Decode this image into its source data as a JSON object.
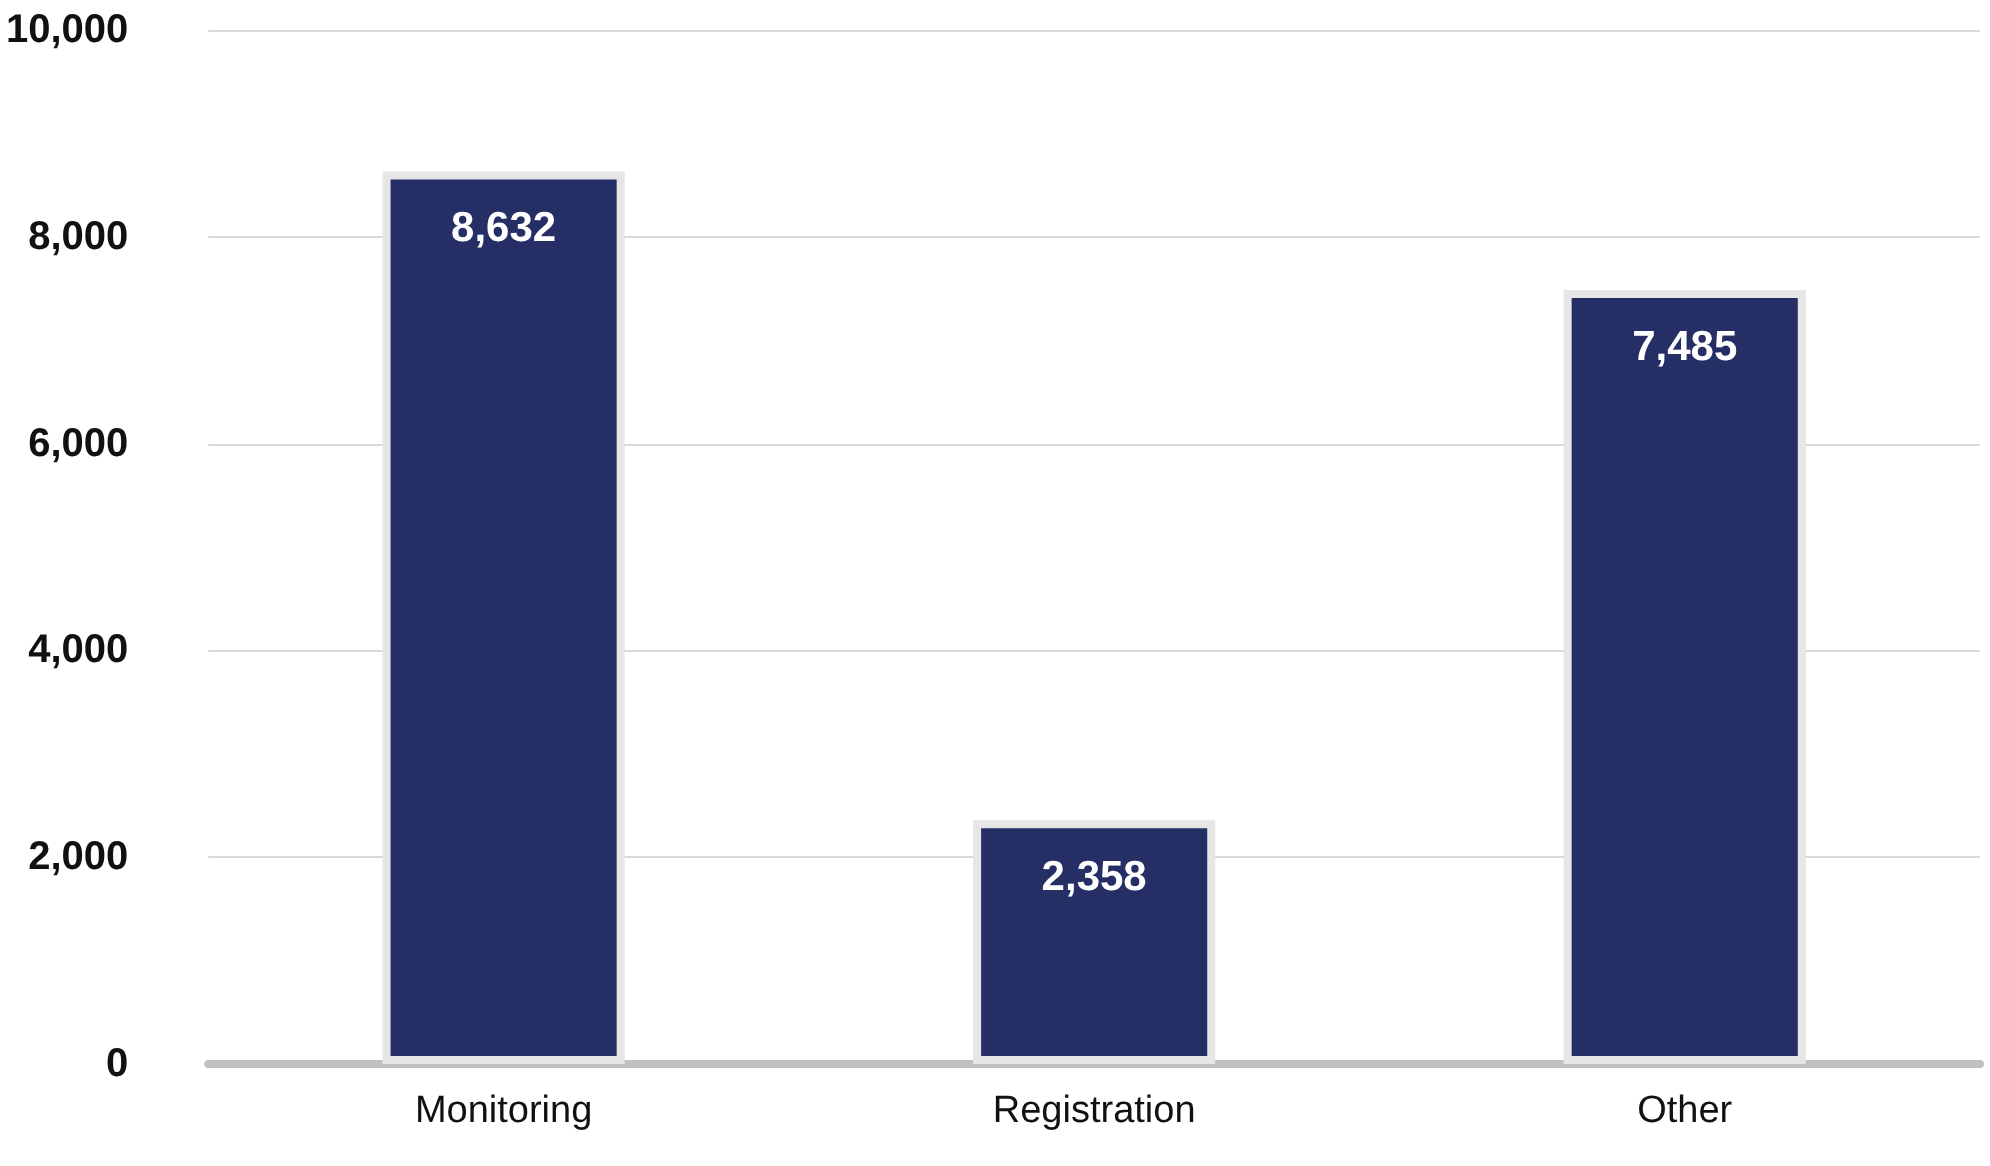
{
  "chart_data": {
    "type": "bar",
    "categories": [
      "Monitoring",
      "Registration",
      "Other"
    ],
    "values": [
      8632,
      2358,
      7485
    ],
    "value_labels": [
      "8,632",
      "2,358",
      "7,485"
    ],
    "color": "#252f66",
    "ylim": [
      0,
      10000
    ],
    "yticks": [
      0,
      {
        "value": 2000,
        "label": "2,000"
      },
      {
        "value": 4000,
        "label": "4,000"
      },
      {
        "value": 6000,
        "label": "6,000"
      },
      {
        "value": 8000,
        "label": "8,000"
      },
      {
        "value": 10000,
        "label": "10,000"
      }
    ],
    "grid": "y"
  }
}
